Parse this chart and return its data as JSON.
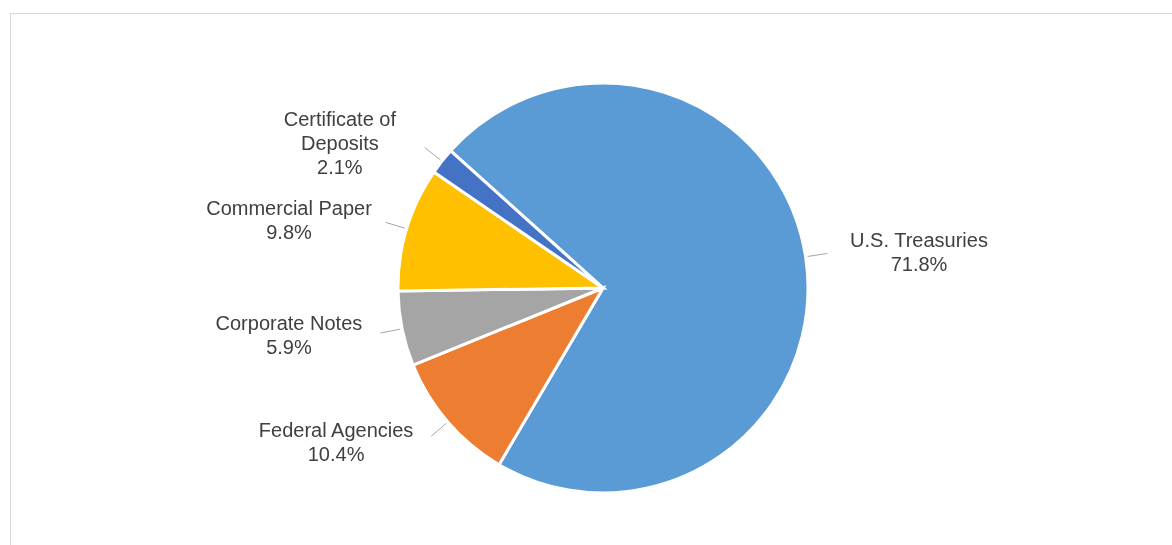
{
  "chart_data": {
    "type": "pie",
    "categories": [
      "U.S. Treasuries",
      "Federal Agencies",
      "Corporate Notes",
      "Commercial Paper",
      "Certificate of Deposits"
    ],
    "values": [
      71.8,
      10.4,
      5.9,
      9.8,
      2.1
    ],
    "colors": [
      "#5b9bd5",
      "#ed7d31",
      "#a5a5a5",
      "#ffc000",
      "#4472c4"
    ],
    "value_labels": [
      "71.8%",
      "10.4%",
      "5.9%",
      "9.8%",
      "2.1%"
    ],
    "legend": false
  }
}
